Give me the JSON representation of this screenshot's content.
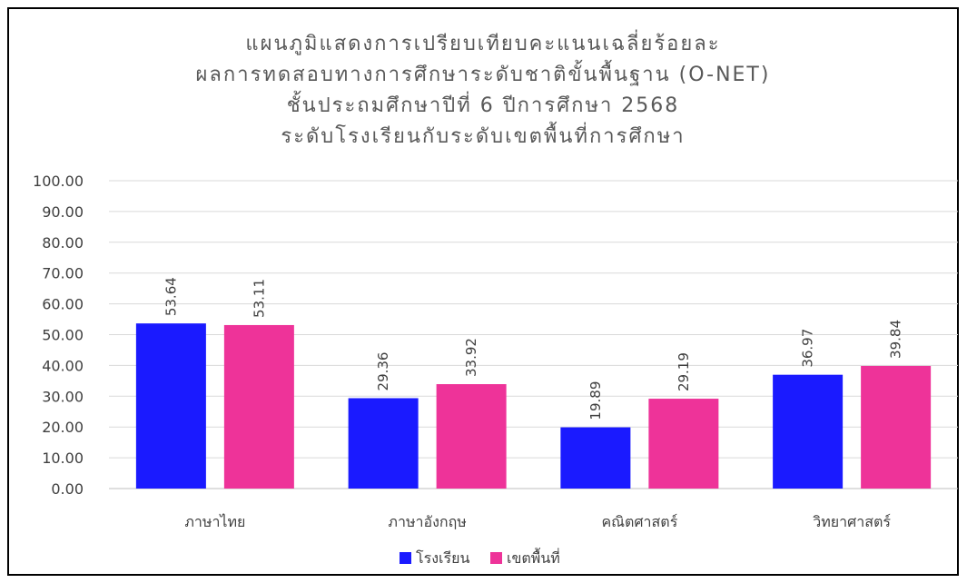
{
  "chart_data": {
    "type": "bar",
    "title": [
      "แผนภูมิแสดงการเปรียบเทียบคะแนนเฉลี่ยร้อยละ",
      "ผลการทดสอบทางการศึกษาระดับชาติขั้นพื้นฐาน (O-NET)",
      "ชั้นประถมศึกษาปีที่ 6 ปีการศึกษา 2568",
      "ระดับโรงเรียนกับระดับเขตพื้นที่การศึกษา"
    ],
    "categories": [
      "ภาษาไทย",
      "ภาษาอังกฤษ",
      "คณิตศาสตร์",
      "วิทยาศาสตร์"
    ],
    "series": [
      {
        "name": "โรงเรียน",
        "values": [
          53.64,
          29.36,
          19.89,
          36.97
        ],
        "color": "#1a1aff"
      },
      {
        "name": "เขตพื้นที่",
        "values": [
          53.11,
          33.92,
          29.19,
          39.84
        ],
        "color": "#ee3399"
      }
    ],
    "ylim": [
      0,
      100
    ],
    "yticks": [
      "0.00",
      "10.00",
      "20.00",
      "30.00",
      "40.00",
      "50.00",
      "60.00",
      "70.00",
      "80.00",
      "90.00",
      "100.00"
    ],
    "grid": true,
    "legend": "bottom"
  }
}
